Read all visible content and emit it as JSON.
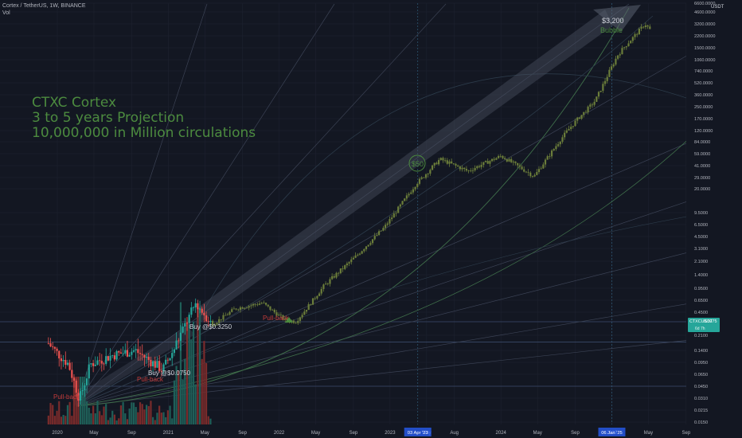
{
  "header": {
    "symbol_line": "Cortex / TetherUS, 1W, BINANCE",
    "volume_label": "Vol"
  },
  "projection_text": [
    "CTXC Cortex",
    "3 to 5 years Projection",
    "10,000,000 in Million circulations"
  ],
  "price_tag": {
    "symbol": "CTXCUSDT",
    "value": "0.3275",
    "countdown": "6d 7h"
  },
  "colors": {
    "background": "#131722",
    "up": "#26a69a",
    "down": "#ef5350",
    "projection": "#4c8b3f",
    "pullback": "#c23b3b",
    "grid": "#1e2230"
  },
  "chart_data": {
    "type": "candlestick",
    "yscale": "log",
    "y_unit": "USDT",
    "y_ticks": [
      6600,
      4600,
      3200,
      2200,
      1500,
      1060,
      740,
      520,
      360,
      250,
      170,
      120,
      84,
      59,
      41,
      29,
      20,
      9.5,
      6.5,
      4.5,
      3.1,
      2.1,
      1.4,
      0.95,
      0.65,
      0.45,
      0.3275,
      0.21,
      0.14,
      0.095,
      0.065,
      0.045,
      0.031,
      0.0215,
      0.015
    ],
    "y_tick_labels": [
      "6600.0000",
      "4600.0000",
      "3200.0000",
      "2200.0000",
      "1500.0000",
      "1060.0000",
      "740.0000",
      "520.0000",
      "360.0000",
      "250.0000",
      "170.0000",
      "120.0000",
      "84.0000",
      "59.0000",
      "41.0000",
      "29.0000",
      "20.0000",
      "9.5000",
      "6.5000",
      "4.5000",
      "3.1000",
      "2.1000",
      "1.4000",
      "0.9500",
      "0.6500",
      "0.4500",
      "0.3275",
      "0.2100",
      "0.1400",
      "0.0950",
      "0.0650",
      "0.0450",
      "0.0310",
      "0.0215",
      "0.0150"
    ],
    "y_axis_title": "USDT",
    "x_tick_labels": [
      "2020",
      "May",
      "Sep",
      "2021",
      "May",
      "Sep",
      "2022",
      "May",
      "Sep",
      "2023",
      "May",
      "Aug",
      "2024",
      "May",
      "Sep",
      "2025",
      "May",
      "Sep"
    ],
    "x_highlight_labels": [
      "03 Apr '23",
      "06 Jan '25"
    ],
    "annotations": {
      "pullbacks": [
        "Pull-back",
        "Pull-back",
        "Pull-back"
      ],
      "buy_1": "Buy @$0.0750",
      "buy_2": "Buy @$0.3250",
      "milestone_50": "$50",
      "target_price": "$3,200",
      "target_label": "Bubble"
    },
    "price_path": [
      {
        "t": 2019.92,
        "v": 0.17
      },
      {
        "t": 2020.1,
        "v": 0.09
      },
      {
        "t": 2020.2,
        "v": 0.03
      },
      {
        "t": 2020.3,
        "v": 0.09
      },
      {
        "t": 2020.5,
        "v": 0.12
      },
      {
        "t": 2020.7,
        "v": 0.14
      },
      {
        "t": 2020.95,
        "v": 0.075
      },
      {
        "t": 2021.1,
        "v": 0.2
      },
      {
        "t": 2021.25,
        "v": 0.6
      },
      {
        "t": 2021.4,
        "v": 0.3
      },
      {
        "t": 2021.6,
        "v": 0.5
      },
      {
        "t": 2021.85,
        "v": 0.6
      },
      {
        "t": 2022.05,
        "v": 0.35
      },
      {
        "t": 2022.15,
        "v": 0.3275
      },
      {
        "t": 2022.4,
        "v": 1.0
      },
      {
        "t": 2022.7,
        "v": 2.5
      },
      {
        "t": 2022.95,
        "v": 6
      },
      {
        "t": 2023.25,
        "v": 25
      },
      {
        "t": 2023.45,
        "v": 50
      },
      {
        "t": 2023.7,
        "v": 35
      },
      {
        "t": 2024.0,
        "v": 55
      },
      {
        "t": 2024.3,
        "v": 30
      },
      {
        "t": 2024.6,
        "v": 120
      },
      {
        "t": 2024.85,
        "v": 300
      },
      {
        "t": 2025.05,
        "v": 1200
      },
      {
        "t": 2025.3,
        "v": 3200
      },
      {
        "t": 2025.35,
        "v": 2600
      }
    ]
  }
}
